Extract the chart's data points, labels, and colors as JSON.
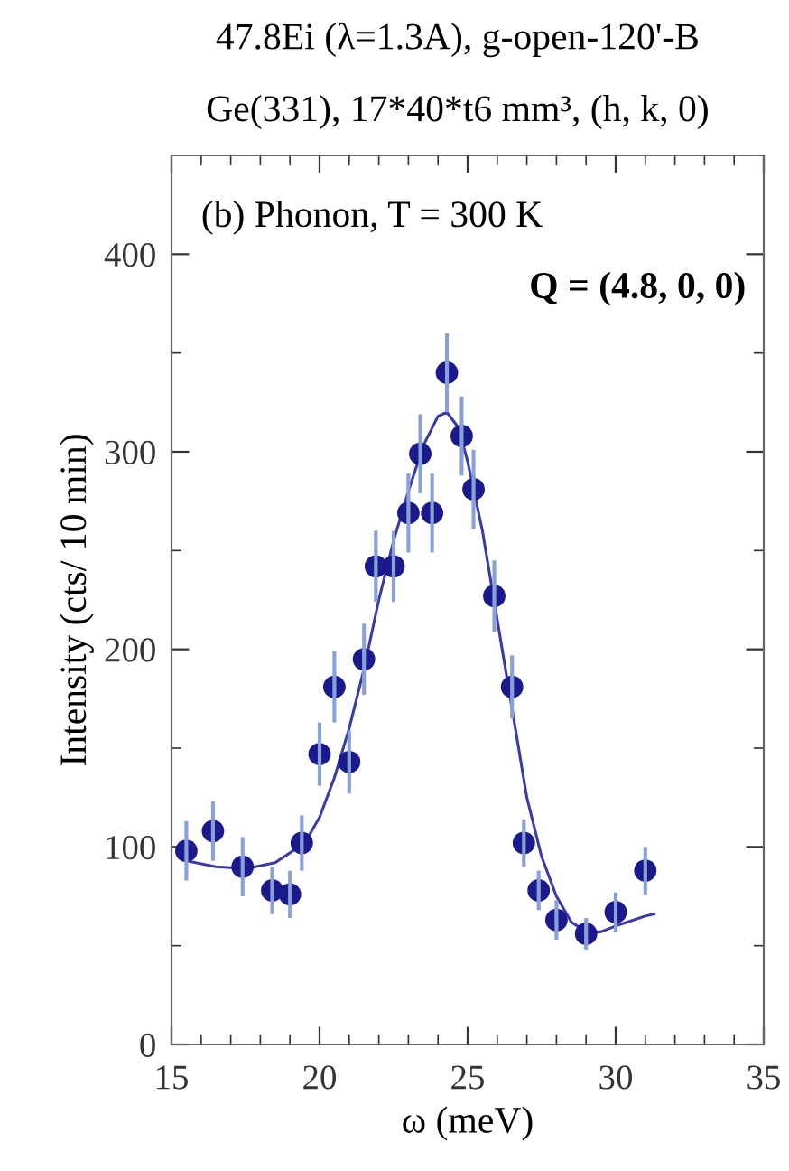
{
  "chart_data": {
    "type": "scatter",
    "title": "47.8Ei (λ=1.3A), g-open-120'-B",
    "subtitle": "Ge(331), 17*40*t6 mm³, (h, k, 0)",
    "xlabel": "ω (meV)",
    "ylabel": "Intensity (cts/ 10 min)",
    "annotations": [
      "(b) Phonon, T = 300 K",
      "Q = (4.8, 0, 0)"
    ],
    "xlim": [
      15,
      35
    ],
    "xticks": [
      15,
      20,
      25,
      30,
      35
    ],
    "ylim": [
      0,
      450
    ],
    "yticks": [
      0,
      100,
      200,
      300,
      400
    ],
    "marker": "circle",
    "grid": false,
    "series": [
      {
        "color": "#1a1a8c",
        "x": [
          15.5,
          16.4,
          17.4,
          18.4,
          19.0,
          19.4,
          20.0,
          20.5,
          21.0,
          21.5,
          21.9,
          22.5,
          23.0,
          23.4,
          23.8,
          24.3,
          24.8,
          25.2,
          25.9,
          26.5,
          26.9,
          27.4,
          28.0,
          29.0,
          30.0,
          31.0
        ],
        "values": [
          98,
          108,
          90,
          78,
          76,
          102,
          147,
          181,
          143,
          195,
          242,
          242,
          269,
          299,
          269,
          340,
          308,
          281,
          227,
          181,
          102,
          78,
          63,
          56,
          67,
          88
        ],
        "errors": [
          15,
          15,
          15,
          12,
          12,
          14,
          16,
          18,
          16,
          18,
          18,
          18,
          20,
          20,
          20,
          20,
          20,
          20,
          18,
          16,
          12,
          10,
          10,
          8,
          10,
          12
        ]
      },
      {
        "type": "line",
        "color": "#3a3aa8",
        "line_style": "solid",
        "marker": "none",
        "x": [
          15.5,
          16.5,
          17.5,
          18.5,
          19.5,
          20.0,
          20.5,
          21.0,
          21.5,
          22.0,
          22.5,
          23.0,
          23.5,
          24.0,
          24.3,
          24.7,
          25.0,
          25.5,
          26.0,
          26.5,
          27.0,
          27.5,
          28.0,
          28.5,
          29.0,
          29.5,
          30.0,
          31.0,
          31.3
        ],
        "values": [
          93,
          90,
          89,
          92,
          102,
          115,
          135,
          160,
          190,
          225,
          255,
          280,
          303,
          318,
          320,
          312,
          295,
          260,
          215,
          170,
          125,
          95,
          75,
          62,
          57,
          57,
          60,
          65,
          66
        ]
      }
    ]
  }
}
